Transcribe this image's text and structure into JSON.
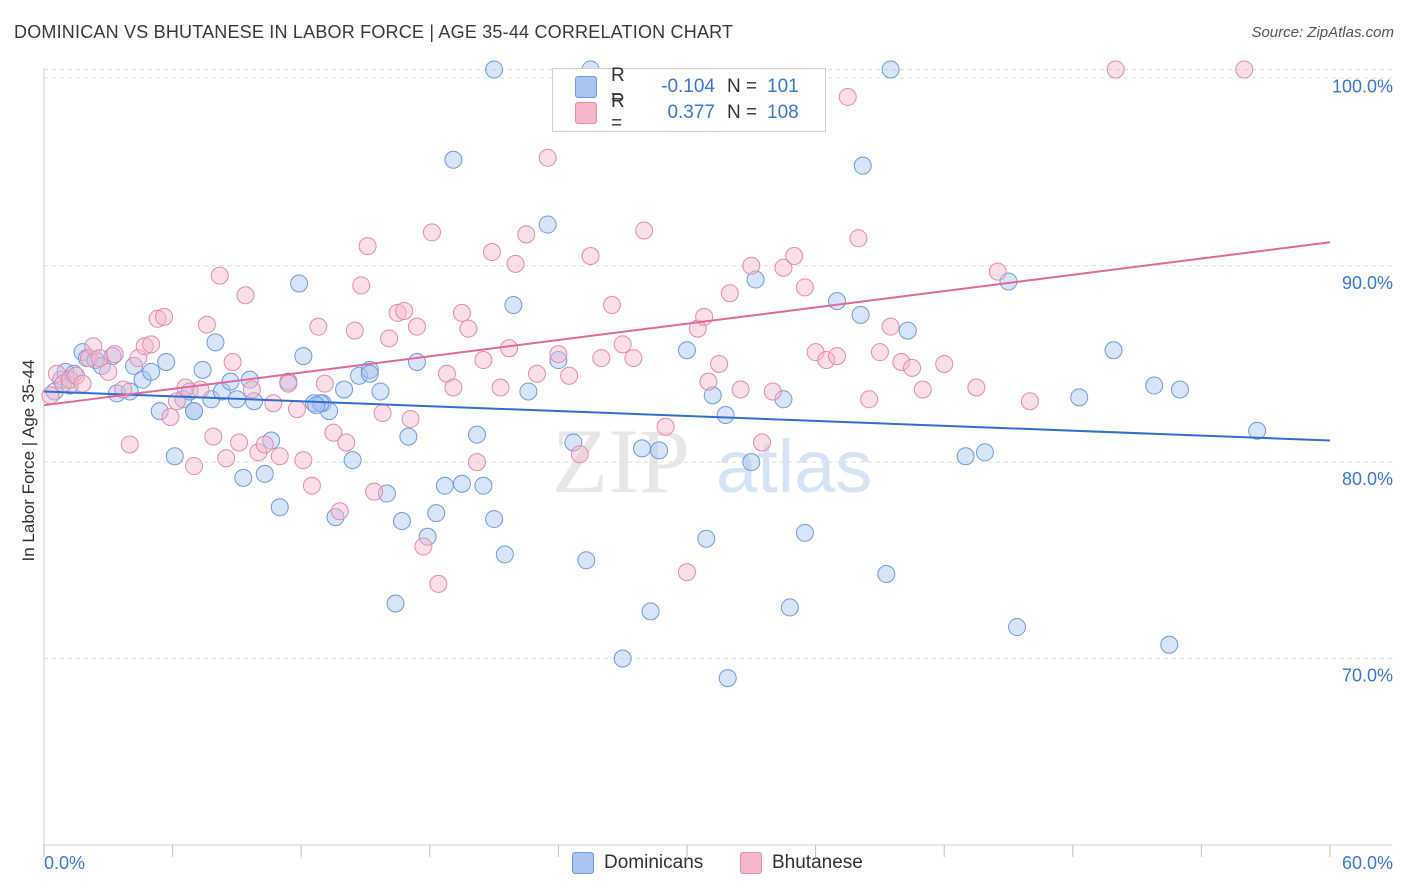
{
  "title": "DOMINICAN VS BHUTANESE IN LABOR FORCE | AGE 35-44 CORRELATION CHART",
  "source": "Source: ZipAtlas.com",
  "watermark": {
    "part1": "ZIP",
    "part2": "atlas"
  },
  "legend": {
    "rows": [
      {
        "r_label": "R =",
        "r_value": "-0.104",
        "n_label": "N =",
        "n_value": "101",
        "color": "#a9c4ee",
        "edge": "#6e9bdc"
      },
      {
        "r_label": "R =",
        "r_value": "0.377",
        "n_label": "N =",
        "n_value": "108",
        "color": "#f5b8cb",
        "edge": "#e889a8"
      }
    ]
  },
  "bottom_legend": [
    {
      "label": "Dominicans",
      "color": "#a9c4ee",
      "edge": "#6e9bdc"
    },
    {
      "label": "Bhutanese",
      "color": "#f5b8cb",
      "edge": "#e889a8"
    }
  ],
  "chart_data": {
    "type": "scatter",
    "title": "DOMINICAN VS BHUTANESE IN LABOR FORCE | AGE 35-44 CORRELATION CHART",
    "xlabel": "",
    "ylabel": "In Labor Force | Age 35-44",
    "xlim": [
      0,
      60
    ],
    "ylim": [
      60.5,
      101.5
    ],
    "x_tick_labels": [
      "0.0%",
      "60.0%"
    ],
    "y_ticks": [
      70,
      80,
      90,
      100
    ],
    "y_tick_labels": [
      "70.0%",
      "80.0%",
      "90.0%",
      "100.0%"
    ],
    "grid": true,
    "series": [
      {
        "name": "Dominicans",
        "color": "#6e9bdc",
        "fill": "#a9c4ee",
        "trend": {
          "x": [
            0,
            60
          ],
          "y": [
            83.6,
            81.1
          ],
          "color": "#2f6fd0"
        },
        "points": [
          [
            0.5,
            83.6
          ],
          [
            0.8,
            84.2
          ],
          [
            1.0,
            84.6
          ],
          [
            1.2,
            83.9
          ],
          [
            1.4,
            84.5
          ],
          [
            1.8,
            85.6
          ],
          [
            2.0,
            85.3
          ],
          [
            2.4,
            85.2
          ],
          [
            2.7,
            84.9
          ],
          [
            3.2,
            85.4
          ],
          [
            3.4,
            83.5
          ],
          [
            4.0,
            83.6
          ],
          [
            4.2,
            84.9
          ],
          [
            4.6,
            84.2
          ],
          [
            5.0,
            84.6
          ],
          [
            5.4,
            82.6
          ],
          [
            5.7,
            85.1
          ],
          [
            6.1,
            80.3
          ],
          [
            6.5,
            83.2
          ],
          [
            6.8,
            83.6
          ],
          [
            7.0,
            82.6
          ],
          [
            7.4,
            84.7
          ],
          [
            7.8,
            83.2
          ],
          [
            8.0,
            86.1
          ],
          [
            8.3,
            83.6
          ],
          [
            8.7,
            84.1
          ],
          [
            9.0,
            83.2
          ],
          [
            9.3,
            79.2
          ],
          [
            9.6,
            84.2
          ],
          [
            9.8,
            83.1
          ],
          [
            10.3,
            79.4
          ],
          [
            10.6,
            81.1
          ],
          [
            11.0,
            77.7
          ],
          [
            11.4,
            84.1
          ],
          [
            11.9,
            89.1
          ],
          [
            12.1,
            85.4
          ],
          [
            12.6,
            83.0
          ],
          [
            13.0,
            83.0
          ],
          [
            13.3,
            82.6
          ],
          [
            13.6,
            77.2
          ],
          [
            14.0,
            83.7
          ],
          [
            14.4,
            80.1
          ],
          [
            14.7,
            84.4
          ],
          [
            15.2,
            84.7
          ],
          [
            15.7,
            83.6
          ],
          [
            16.0,
            78.4
          ],
          [
            16.4,
            72.8
          ],
          [
            16.7,
            77.0
          ],
          [
            17.0,
            81.3
          ],
          [
            17.4,
            85.1
          ],
          [
            17.9,
            76.2
          ],
          [
            18.3,
            77.4
          ],
          [
            18.7,
            78.8
          ],
          [
            19.1,
            95.4
          ],
          [
            19.5,
            78.9
          ],
          [
            20.2,
            81.4
          ],
          [
            20.5,
            78.8
          ],
          [
            21.0,
            77.1
          ],
          [
            21.5,
            75.3
          ],
          [
            21.9,
            88.0
          ],
          [
            22.6,
            83.6
          ],
          [
            23.5,
            92.1
          ],
          [
            24.0,
            85.2
          ],
          [
            24.7,
            81.0
          ],
          [
            25.3,
            75.0
          ],
          [
            25.5,
            100.0
          ],
          [
            27.0,
            70.0
          ],
          [
            27.9,
            80.7
          ],
          [
            28.3,
            72.4
          ],
          [
            28.7,
            80.6
          ],
          [
            30.0,
            85.7
          ],
          [
            30.9,
            76.1
          ],
          [
            31.2,
            83.4
          ],
          [
            31.8,
            82.4
          ],
          [
            31.9,
            69.0
          ],
          [
            33.0,
            80.0
          ],
          [
            33.2,
            89.3
          ],
          [
            34.5,
            83.2
          ],
          [
            34.8,
            72.6
          ],
          [
            35.5,
            76.4
          ],
          [
            37.0,
            88.2
          ],
          [
            38.1,
            87.5
          ],
          [
            38.2,
            95.1
          ],
          [
            39.3,
            74.3
          ],
          [
            39.5,
            100.0
          ],
          [
            40.3,
            86.7
          ],
          [
            43.0,
            80.3
          ],
          [
            43.9,
            80.5
          ],
          [
            45.0,
            89.2
          ],
          [
            45.4,
            71.6
          ],
          [
            48.3,
            83.3
          ],
          [
            49.9,
            85.7
          ],
          [
            51.8,
            83.9
          ],
          [
            52.5,
            70.7
          ],
          [
            53.0,
            83.7
          ],
          [
            56.6,
            81.6
          ],
          [
            7.0,
            82.6
          ],
          [
            12.9,
            83.0
          ],
          [
            15.2,
            84.5
          ],
          [
            21.0,
            100.0
          ],
          [
            12.7,
            82.9
          ]
        ]
      },
      {
        "name": "Bhutanese",
        "color": "#e889a8",
        "fill": "#f5b8cb",
        "trend": {
          "x": [
            0,
            60
          ],
          "y": [
            82.9,
            91.2
          ],
          "color": "#e2679a"
        },
        "points": [
          [
            0.3,
            83.4
          ],
          [
            0.6,
            84.5
          ],
          [
            0.9,
            84.0
          ],
          [
            1.2,
            84.2
          ],
          [
            1.5,
            84.4
          ],
          [
            1.8,
            84.0
          ],
          [
            2.1,
            85.3
          ],
          [
            2.3,
            85.9
          ],
          [
            2.6,
            85.3
          ],
          [
            3.0,
            84.6
          ],
          [
            3.3,
            85.5
          ],
          [
            3.7,
            83.7
          ],
          [
            4.0,
            80.9
          ],
          [
            4.4,
            85.3
          ],
          [
            4.7,
            85.9
          ],
          [
            5.0,
            86.0
          ],
          [
            5.3,
            87.3
          ],
          [
            5.6,
            87.4
          ],
          [
            5.9,
            82.3
          ],
          [
            6.2,
            83.1
          ],
          [
            6.6,
            83.8
          ],
          [
            7.0,
            79.8
          ],
          [
            7.3,
            83.7
          ],
          [
            7.6,
            87.0
          ],
          [
            7.9,
            81.3
          ],
          [
            8.2,
            89.5
          ],
          [
            8.5,
            80.2
          ],
          [
            8.8,
            85.1
          ],
          [
            9.1,
            81.0
          ],
          [
            9.4,
            88.5
          ],
          [
            9.7,
            83.7
          ],
          [
            10.0,
            80.5
          ],
          [
            10.3,
            80.9
          ],
          [
            10.7,
            83.0
          ],
          [
            11.0,
            80.3
          ],
          [
            11.4,
            84.0
          ],
          [
            11.8,
            82.7
          ],
          [
            12.1,
            80.1
          ],
          [
            12.5,
            78.8
          ],
          [
            12.8,
            86.9
          ],
          [
            13.1,
            84.0
          ],
          [
            13.5,
            81.5
          ],
          [
            13.8,
            77.5
          ],
          [
            14.1,
            81.0
          ],
          [
            14.5,
            86.7
          ],
          [
            14.8,
            89.0
          ],
          [
            15.1,
            91.0
          ],
          [
            15.4,
            78.5
          ],
          [
            15.8,
            82.5
          ],
          [
            16.1,
            86.3
          ],
          [
            16.5,
            87.6
          ],
          [
            16.8,
            87.7
          ],
          [
            17.1,
            82.2
          ],
          [
            17.4,
            86.9
          ],
          [
            17.7,
            75.7
          ],
          [
            18.1,
            91.7
          ],
          [
            18.4,
            73.8
          ],
          [
            18.8,
            84.5
          ],
          [
            19.1,
            83.8
          ],
          [
            19.5,
            87.6
          ],
          [
            19.8,
            86.8
          ],
          [
            20.2,
            80.0
          ],
          [
            20.5,
            85.2
          ],
          [
            20.9,
            90.7
          ],
          [
            21.3,
            83.8
          ],
          [
            21.7,
            85.8
          ],
          [
            22.0,
            90.1
          ],
          [
            22.5,
            91.6
          ],
          [
            23.0,
            84.5
          ],
          [
            23.5,
            95.5
          ],
          [
            24.0,
            85.5
          ],
          [
            24.5,
            84.4
          ],
          [
            25.0,
            80.4
          ],
          [
            25.5,
            90.5
          ],
          [
            26.0,
            85.3
          ],
          [
            26.5,
            88.0
          ],
          [
            27.0,
            86.0
          ],
          [
            27.5,
            85.3
          ],
          [
            28.0,
            91.8
          ],
          [
            29.0,
            81.8
          ],
          [
            30.0,
            74.4
          ],
          [
            30.5,
            86.8
          ],
          [
            31.0,
            84.1
          ],
          [
            31.5,
            85.0
          ],
          [
            32.0,
            88.6
          ],
          [
            32.5,
            83.7
          ],
          [
            33.0,
            90.0
          ],
          [
            33.5,
            81.0
          ],
          [
            34.0,
            83.6
          ],
          [
            34.5,
            89.9
          ],
          [
            35.0,
            90.5
          ],
          [
            35.5,
            88.9
          ],
          [
            36.0,
            85.6
          ],
          [
            36.5,
            85.2
          ],
          [
            37.0,
            85.4
          ],
          [
            37.5,
            98.6
          ],
          [
            38.0,
            91.4
          ],
          [
            38.5,
            83.2
          ],
          [
            39.0,
            85.6
          ],
          [
            39.5,
            86.9
          ],
          [
            40.0,
            85.1
          ],
          [
            40.5,
            84.8
          ],
          [
            41.0,
            83.7
          ],
          [
            42.0,
            85.0
          ],
          [
            43.5,
            83.8
          ],
          [
            44.5,
            89.7
          ],
          [
            46.0,
            83.1
          ],
          [
            50.0,
            100.0
          ],
          [
            56.0,
            100.0
          ],
          [
            30.8,
            87.4
          ]
        ]
      }
    ]
  }
}
